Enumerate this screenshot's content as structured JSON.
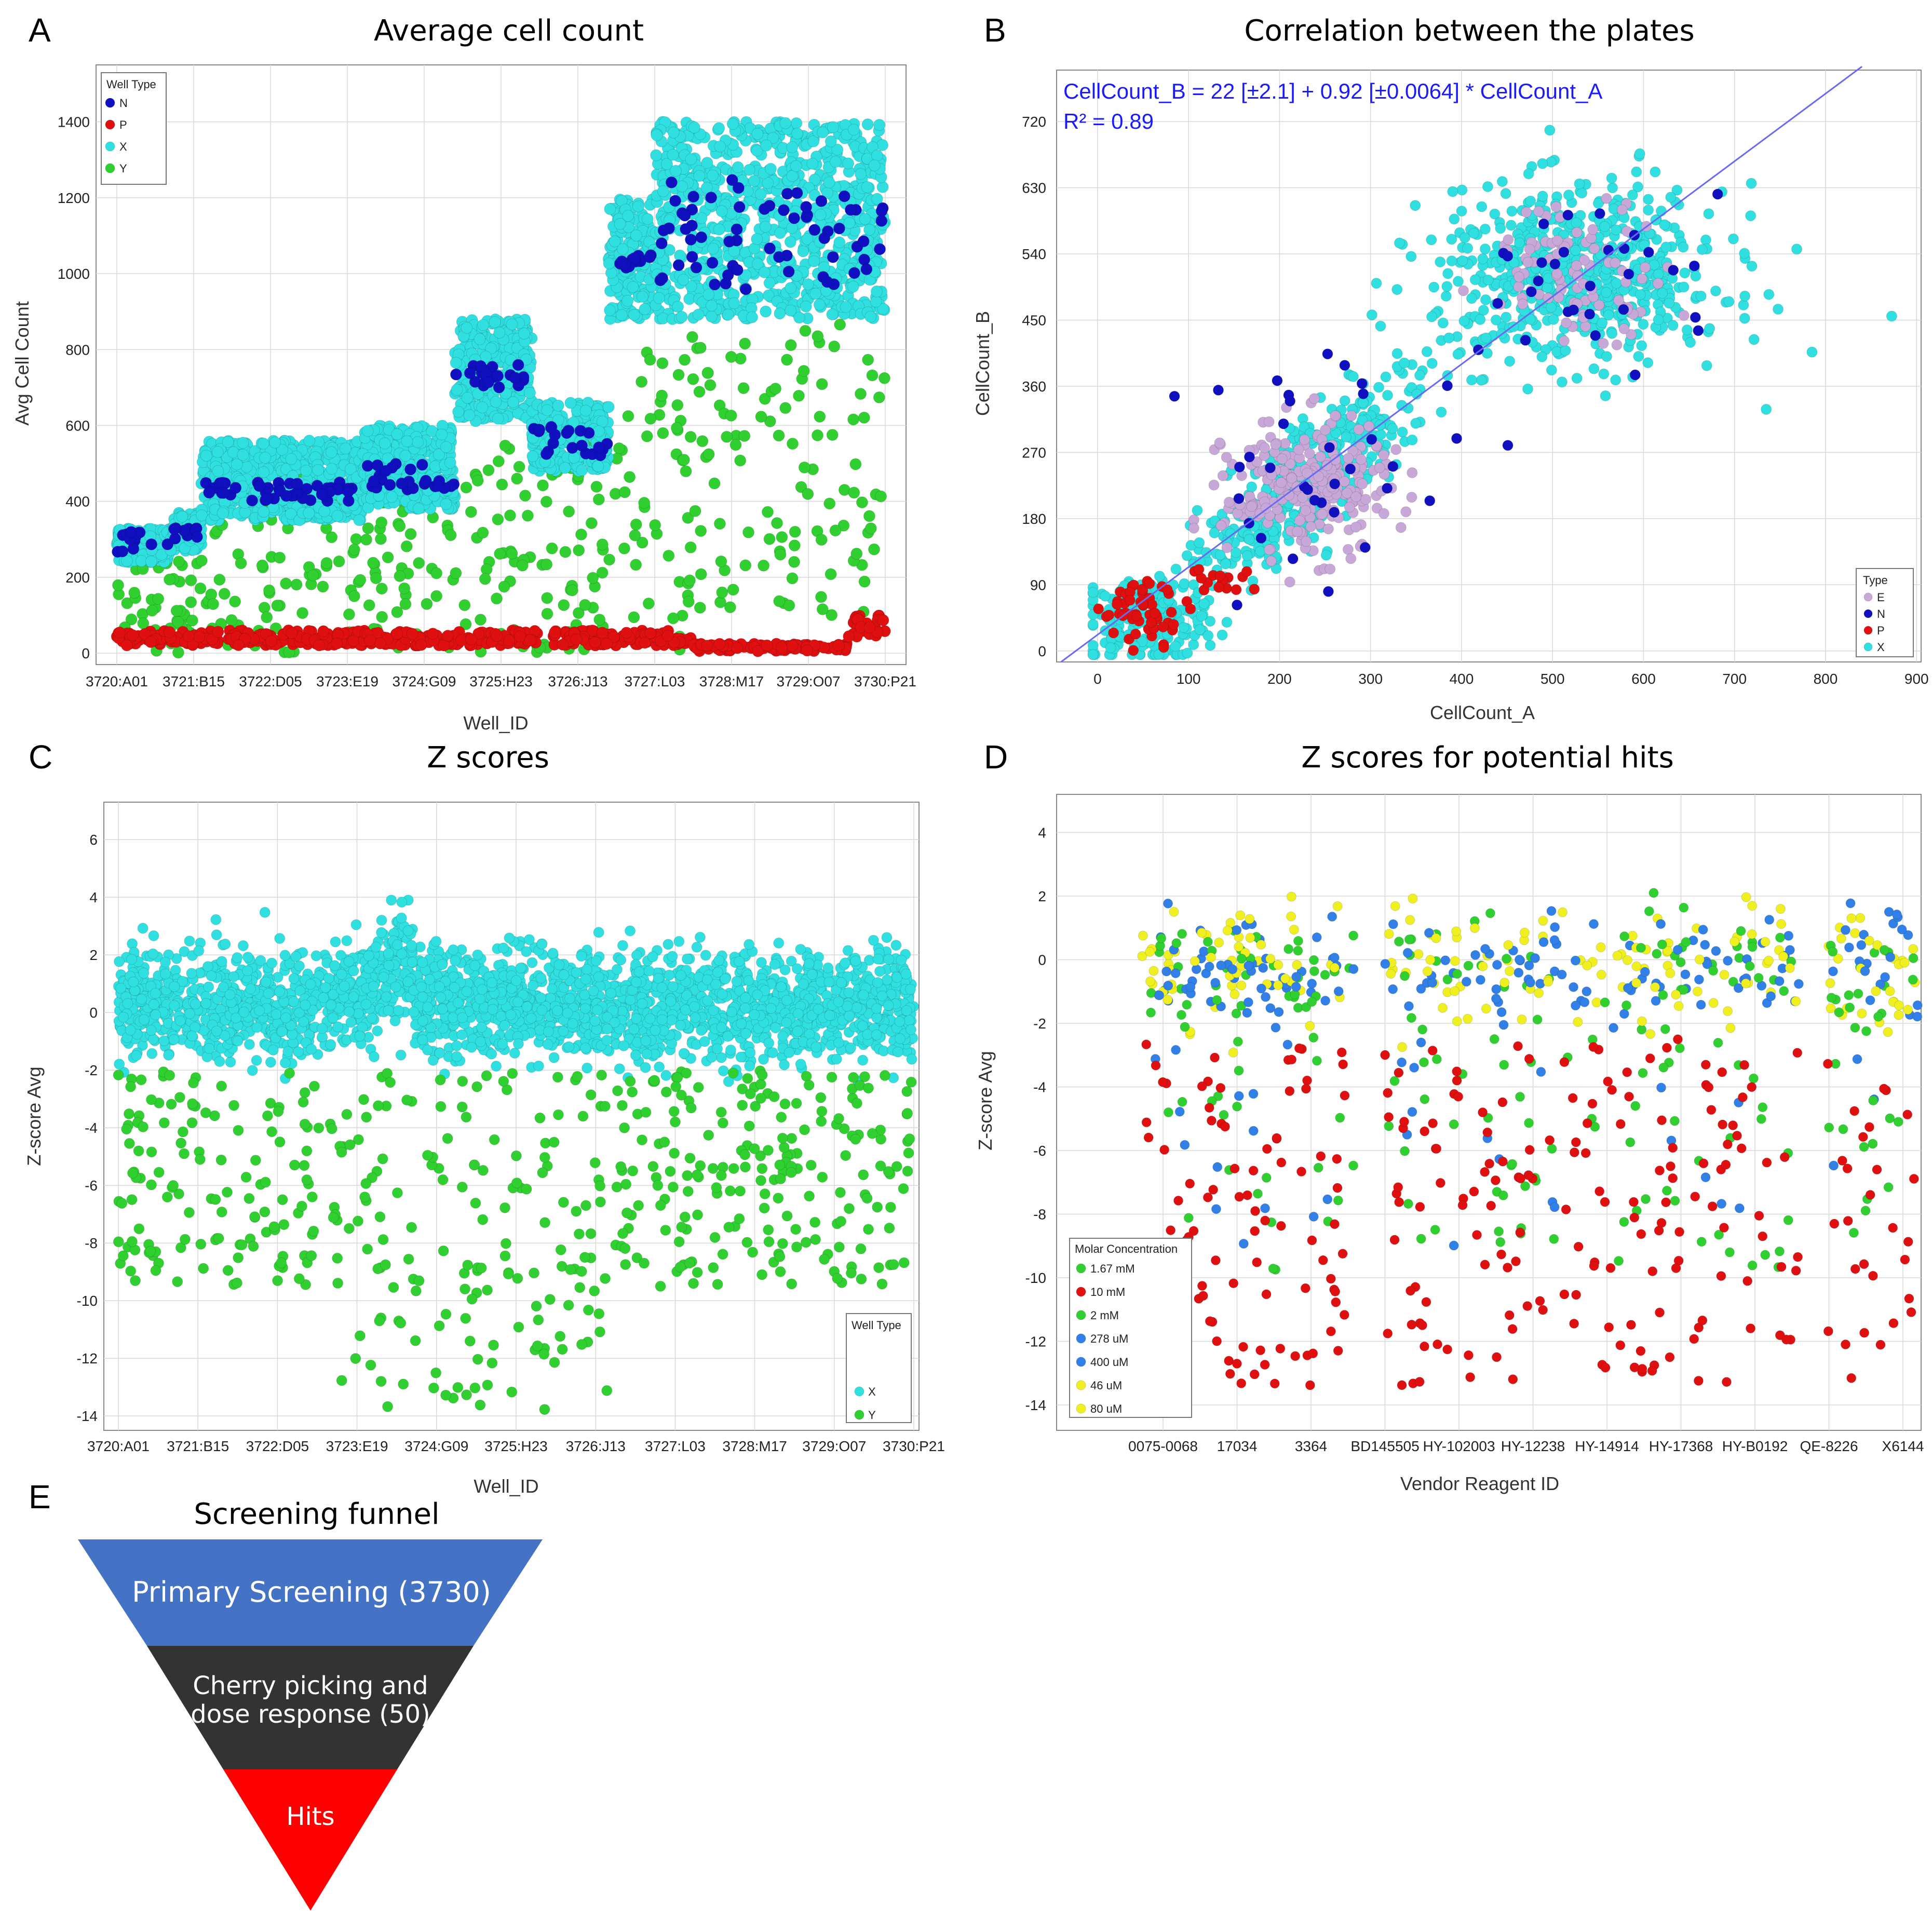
{
  "panels": {
    "A": {
      "letter": "A",
      "chart_data": {
        "type": "scatter",
        "title": "Average cell count",
        "xlabel": "Well_ID",
        "ylabel": "Avg Cell Count",
        "x_tick_labels": [
          "3720:A01",
          "3721:B15",
          "3722:D05",
          "3723:E19",
          "3724:G09",
          "3725:H23",
          "3726:J13",
          "3727:L03",
          "3728:M17",
          "3729:O07",
          "3730:P21"
        ],
        "y_ticks": [
          0,
          200,
          400,
          600,
          800,
          1000,
          1200,
          1400
        ],
        "ylim": [
          -30,
          1550
        ],
        "legend": {
          "title": "Well Type",
          "placement": "top-left"
        },
        "colors": {
          "N": "#1010c0",
          "P": "#e01010",
          "X": "#30e0e0",
          "Y": "#30d030"
        },
        "series": [
          {
            "name": "N",
            "segments": [
              {
                "x": [
                  0,
                  0.7
                ],
                "y": [
                  260,
                  320
                ]
              },
              {
                "x": [
                  0.7,
                  1.1
                ],
                "y": [
                  300,
                  330
                ]
              },
              {
                "x": [
                  1.1,
                  3.2
                ],
                "y": [
                  400,
                  450
                ]
              },
              {
                "x": [
                  3.2,
                  4.4
                ],
                "y": [
                  430,
                  500
                ]
              },
              {
                "x": [
                  4.4,
                  5.4
                ],
                "y": [
                  700,
                  760
                ]
              },
              {
                "x": [
                  5.4,
                  6.4
                ],
                "y": [
                  520,
                  600
                ]
              },
              {
                "x": [
                  6.4,
                  7.0
                ],
                "y": [
                  1000,
                  1050
                ]
              },
              {
                "x": [
                  7.0,
                  10.0
                ],
                "y": [
                  950,
                  1250
                ]
              }
            ]
          },
          {
            "name": "P",
            "segments": [
              {
                "x": [
                  0,
                  7.5
                ],
                "y": [
                  20,
                  60
                ]
              },
              {
                "x": [
                  7.5,
                  9.5
                ],
                "y": [
                  5,
                  25
                ]
              },
              {
                "x": [
                  9.5,
                  10.0
                ],
                "y": [
                  40,
                  100
                ]
              }
            ]
          },
          {
            "name": "X",
            "segments": [
              {
                "x": [
                  0,
                  0.7
                ],
                "y": [
                  240,
                  330
                ]
              },
              {
                "x": [
                  0.7,
                  1.1
                ],
                "y": [
                  270,
                  370
                ]
              },
              {
                "x": [
                  1.1,
                  3.2
                ],
                "y": [
                  350,
                  560
                ]
              },
              {
                "x": [
                  3.2,
                  4.4
                ],
                "y": [
                  380,
                  600
                ]
              },
              {
                "x": [
                  4.4,
                  5.4
                ],
                "y": [
                  610,
                  880
                ]
              },
              {
                "x": [
                  5.4,
                  6.4
                ],
                "y": [
                  480,
                  660
                ]
              },
              {
                "x": [
                  6.4,
                  7.0
                ],
                "y": [
                  880,
                  1200
                ]
              },
              {
                "x": [
                  7.0,
                  10.0
                ],
                "y": [
                  880,
                  1400
                ]
              }
            ]
          },
          {
            "name": "Y",
            "segments": [
              {
                "x": [
                  0,
                  1.2
                ],
                "y": [
                  0,
                  280
                ]
              },
              {
                "x": [
                  1.2,
                  4.4
                ],
                "y": [
                  0,
                  480
                ]
              },
              {
                "x": [
                  4.4,
                  6.4
                ],
                "y": [
                  0,
                  560
                ]
              },
              {
                "x": [
                  6.4,
                  7.4
                ],
                "y": [
                  0,
                  800
                ]
              },
              {
                "x": [
                  7.4,
                  10.0
                ],
                "y": [
                  100,
                  900
                ]
              }
            ]
          }
        ]
      }
    },
    "B": {
      "letter": "B",
      "chart_data": {
        "type": "scatter",
        "title": "Correlation between the plates",
        "xlabel": "CellCount_A",
        "ylabel": "CellCount_B",
        "x_ticks": [
          0,
          100,
          200,
          300,
          400,
          500,
          600,
          700,
          800,
          900
        ],
        "y_ticks": [
          0,
          90,
          180,
          270,
          360,
          450,
          540,
          630,
          720
        ],
        "xlim": [
          -45,
          905
        ],
        "ylim": [
          -15,
          790
        ],
        "annotations": [
          "CellCount_B = 22 [±2.1] + 0.92 [±0.0064] * CellCount_A",
          "R² = 0.89"
        ],
        "fit_line": {
          "intercept": 22,
          "slope": 0.92
        },
        "legend": {
          "title": "Type",
          "placement": "bottom-right"
        },
        "colors": {
          "E": "#c8a8d8",
          "N": "#1010c0",
          "P": "#e01010",
          "X": "#30e0e0"
        },
        "series": [
          {
            "name": "E",
            "clusters": [
              {
                "cx": 230,
                "cy": 220,
                "sx": 45,
                "sy": 45
              },
              {
                "cx": 530,
                "cy": 520,
                "sx": 50,
                "sy": 45
              }
            ]
          },
          {
            "name": "N",
            "clusters": [
              {
                "cx": 260,
                "cy": 250,
                "sx": 80,
                "sy": 80
              },
              {
                "cx": 540,
                "cy": 510,
                "sx": 80,
                "sy": 60
              }
            ]
          },
          {
            "name": "P",
            "clusters": [
              {
                "cx": 55,
                "cy": 55,
                "sx": 25,
                "sy": 20
              },
              {
                "cx": 130,
                "cy": 100,
                "sx": 20,
                "sy": 10
              }
            ]
          },
          {
            "name": "X",
            "clusters": [
              {
                "cx": 50,
                "cy": 40,
                "sx": 35,
                "sy": 30
              },
              {
                "cx": 230,
                "cy": 220,
                "sx": 60,
                "sy": 55
              },
              {
                "cx": 530,
                "cy": 510,
                "sx": 80,
                "sy": 60
              }
            ]
          }
        ]
      }
    },
    "C": {
      "letter": "C",
      "chart_data": {
        "type": "scatter",
        "title": "Z scores",
        "xlabel": "Well_ID",
        "ylabel": "Z-score Avg",
        "x_tick_labels": [
          "3720:A01",
          "3721:B15",
          "3722:D05",
          "3723:E19",
          "3724:G09",
          "3725:H23",
          "3726:J13",
          "3727:L03",
          "3728:M17",
          "3729:O07",
          "3730:P21"
        ],
        "y_ticks": [
          -14,
          -12,
          -10,
          -8,
          -6,
          -4,
          -2,
          0,
          2,
          4,
          6
        ],
        "ylim": [
          -14.5,
          7.3
        ],
        "legend": {
          "title": "Well Type",
          "placement": "bottom-right"
        },
        "colors": {
          "X": "#30e0e0",
          "Y": "#30d030"
        },
        "series": [
          {
            "name": "X",
            "band": {
              "lo": -2.5,
              "hi": 3.0
            }
          },
          {
            "name": "Y",
            "band": {
              "lo": -13.8,
              "hi": -1.8
            }
          }
        ]
      }
    },
    "D": {
      "letter": "D",
      "chart_data": {
        "type": "scatter",
        "title": "Z scores for potential hits",
        "xlabel": "Vendor Reagent ID",
        "ylabel": "Z-score Avg",
        "x_tick_labels": [
          "0075-0068",
          "17034",
          "3364",
          "BD145505",
          "HY-102003",
          "HY-12238",
          "HY-14914",
          "HY-17368",
          "HY-B0192",
          "QE-8226",
          "X6144"
        ],
        "y_ticks": [
          -14,
          -12,
          -10,
          -8,
          -6,
          -4,
          -2,
          0,
          2,
          4
        ],
        "ylim": [
          -14.8,
          5.2
        ],
        "legend": {
          "title": "Molar Concentration",
          "placement": "bottom-left"
        },
        "series": [
          {
            "name": "1.67 mM",
            "color": "#30d030"
          },
          {
            "name": "10 mM",
            "color": "#e01010"
          },
          {
            "name": "2 mM",
            "color": "#30d030"
          },
          {
            "name": "278 uM",
            "color": "#3080e8"
          },
          {
            "name": "400 uM",
            "color": "#3080e8"
          },
          {
            "name": "46 uM",
            "color": "#f0f020"
          },
          {
            "name": "80 uM",
            "color": "#f0f020"
          }
        ]
      }
    },
    "E": {
      "letter": "E",
      "title": "Screening funnel",
      "levels": [
        {
          "label": "Primary Screening (3730)",
          "color": "#4472c4"
        },
        {
          "label_line1": "Cherry picking and",
          "label_line2": "dose response (50)",
          "color": "#333333"
        },
        {
          "label": "Hits",
          "color": "#ff0000"
        }
      ]
    }
  }
}
